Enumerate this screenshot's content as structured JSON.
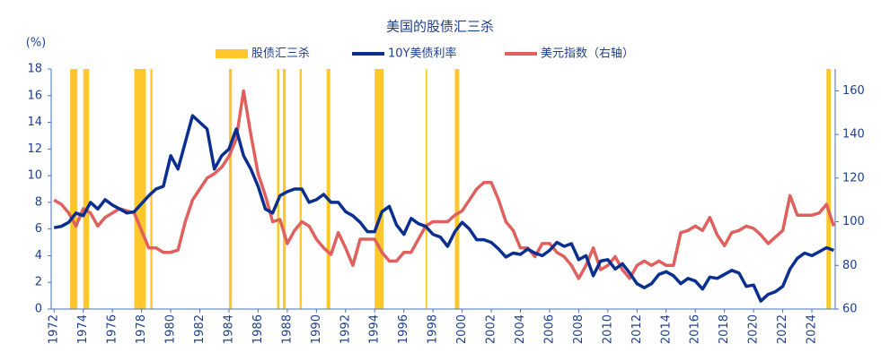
{
  "chart_data": {
    "type": "line",
    "title": "美国的股债汇三杀",
    "y_axis_label": "(%)",
    "x": [
      1972,
      1972.5,
      1973,
      1973.5,
      1974,
      1974.5,
      1975,
      1975.5,
      1976,
      1976.5,
      1977,
      1977.5,
      1978,
      1978.5,
      1979,
      1979.5,
      1980,
      1980.5,
      1981,
      1981.5,
      1982,
      1982.5,
      1983,
      1983.5,
      1984,
      1984.5,
      1985,
      1985.5,
      1986,
      1986.5,
      1987,
      1987.5,
      1988,
      1988.5,
      1989,
      1989.5,
      1990,
      1990.5,
      1991,
      1991.5,
      1992,
      1992.5,
      1993,
      1993.5,
      1994,
      1994.5,
      1995,
      1995.5,
      1996,
      1996.5,
      1997,
      1997.5,
      1998,
      1998.5,
      1999,
      1999.5,
      2000,
      2000.5,
      2001,
      2001.5,
      2002,
      2002.5,
      2003,
      2003.5,
      2004,
      2004.5,
      2005,
      2005.5,
      2006,
      2006.5,
      2007,
      2007.5,
      2008,
      2008.5,
      2009,
      2009.5,
      2010,
      2010.5,
      2011,
      2011.5,
      2012,
      2012.5,
      2013,
      2013.5,
      2014,
      2014.5,
      2015,
      2015.5,
      2016,
      2016.5,
      2017,
      2017.5,
      2018,
      2018.5,
      2019,
      2019.5,
      2020,
      2020.5,
      2021,
      2021.5,
      2022,
      2022.5,
      2023,
      2023.5,
      2024,
      2024.5,
      2025,
      2025.5
    ],
    "series": [
      {
        "name": "股债汇三杀",
        "color": "#ffc72c",
        "periods": [
          [
            1973.1,
            1973.6
          ],
          [
            1974.0,
            1974.4
          ],
          [
            1977.5,
            1978.3
          ],
          [
            1978.6,
            1978.75
          ],
          [
            1984.0,
            1984.2
          ],
          [
            1987.3,
            1987.45
          ],
          [
            1987.7,
            1987.9
          ],
          [
            1988.85,
            1989.0
          ],
          [
            1990.7,
            1990.95
          ],
          [
            1994.0,
            1994.6
          ],
          [
            1997.5,
            1997.6
          ],
          [
            1999.5,
            1999.8
          ],
          [
            2025.0,
            2025.3
          ]
        ]
      },
      {
        "name": "10Y美债利率",
        "color": "#0a2f8f",
        "values": [
          6.1,
          6.2,
          6.5,
          7.2,
          7.0,
          8.0,
          7.5,
          8.2,
          7.8,
          7.5,
          7.2,
          7.3,
          7.9,
          8.5,
          9.0,
          9.2,
          11.5,
          10.5,
          12.5,
          14.5,
          14.0,
          13.5,
          10.5,
          11.5,
          12.0,
          13.5,
          11.5,
          10.5,
          9.2,
          7.5,
          7.2,
          8.5,
          8.8,
          9.0,
          9.0,
          8.0,
          8.2,
          8.6,
          8.0,
          8.0,
          7.3,
          7.0,
          6.5,
          5.8,
          5.8,
          7.3,
          7.7,
          6.3,
          5.6,
          6.8,
          6.4,
          6.2,
          5.6,
          5.4,
          4.7,
          5.8,
          6.5,
          6.0,
          5.2,
          5.2,
          5.0,
          4.5,
          3.9,
          4.2,
          4.1,
          4.5,
          4.2,
          4.0,
          4.4,
          5.0,
          4.7,
          4.9,
          3.7,
          4.0,
          2.5,
          3.6,
          3.7,
          3.0,
          3.4,
          2.7,
          1.9,
          1.6,
          1.9,
          2.6,
          2.8,
          2.5,
          1.9,
          2.3,
          2.1,
          1.5,
          2.4,
          2.3,
          2.6,
          2.9,
          2.7,
          1.7,
          1.8,
          0.6,
          1.1,
          1.3,
          1.7,
          3.0,
          3.8,
          4.2,
          4.0,
          4.3,
          4.6,
          4.4
        ]
      },
      {
        "name": "美元指数（右轴）",
        "color": "#e0605e",
        "axis": "y2",
        "values": [
          110,
          108,
          104,
          98,
          106,
          104,
          98,
          102,
          104,
          106,
          105,
          104,
          96,
          88,
          88,
          86,
          86,
          87,
          100,
          110,
          115,
          120,
          122,
          125,
          130,
          138,
          160,
          140,
          122,
          112,
          100,
          101,
          90,
          96,
          100,
          98,
          92,
          88,
          85,
          95,
          88,
          80,
          92,
          92,
          92,
          86,
          82,
          82,
          86,
          86,
          92,
          98,
          100,
          100,
          100,
          103,
          105,
          110,
          115,
          118,
          118,
          110,
          100,
          96,
          88,
          88,
          84,
          90,
          90,
          86,
          84,
          80,
          74,
          80,
          88,
          78,
          80,
          84,
          78,
          74,
          80,
          82,
          80,
          82,
          80,
          80,
          95,
          96,
          98,
          96,
          102,
          94,
          89,
          95,
          96,
          98,
          97,
          94,
          90,
          93,
          96,
          112,
          103,
          103,
          103,
          104,
          108,
          98
        ]
      }
    ],
    "xlim": [
      1971.8,
      2025.6
    ],
    "xticks": [
      1972,
      1974,
      1976,
      1978,
      1980,
      1982,
      1984,
      1986,
      1988,
      1990,
      1992,
      1994,
      1996,
      1998,
      2000,
      2002,
      2004,
      2006,
      2008,
      2010,
      2012,
      2014,
      2016,
      2018,
      2020,
      2022,
      2024
    ],
    "ylim": [
      0,
      18
    ],
    "yticks": [
      0,
      2,
      4,
      6,
      8,
      10,
      12,
      14,
      16,
      18
    ],
    "y2lim": [
      60,
      170
    ],
    "y2ticks": [
      60,
      80,
      100,
      120,
      140,
      160
    ]
  }
}
